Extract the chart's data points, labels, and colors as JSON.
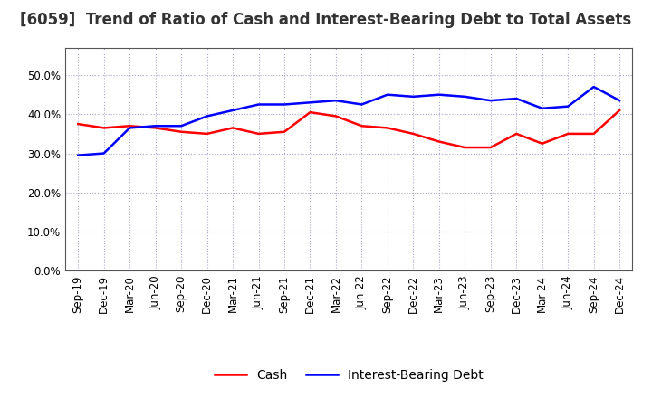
{
  "title": "[6059]  Trend of Ratio of Cash and Interest-Bearing Debt to Total Assets",
  "x_labels": [
    "Sep-19",
    "Dec-19",
    "Mar-20",
    "Jun-20",
    "Sep-20",
    "Dec-20",
    "Mar-21",
    "Jun-21",
    "Sep-21",
    "Dec-21",
    "Mar-22",
    "Jun-22",
    "Sep-22",
    "Dec-22",
    "Mar-23",
    "Jun-23",
    "Sep-23",
    "Dec-23",
    "Mar-24",
    "Jun-24",
    "Sep-24",
    "Dec-24"
  ],
  "cash": [
    37.5,
    36.5,
    37.0,
    36.5,
    35.5,
    35.0,
    36.5,
    35.0,
    35.5,
    40.5,
    39.5,
    37.0,
    36.5,
    35.0,
    33.0,
    31.5,
    31.5,
    35.0,
    32.5,
    35.0,
    35.0,
    41.0
  ],
  "interest_bearing_debt": [
    29.5,
    30.0,
    36.5,
    37.0,
    37.0,
    39.5,
    41.0,
    42.5,
    42.5,
    43.0,
    43.5,
    42.5,
    45.0,
    44.5,
    45.0,
    44.5,
    43.5,
    44.0,
    41.5,
    42.0,
    47.0,
    43.5
  ],
  "cash_color": "#ff0000",
  "debt_color": "#0000ff",
  "background_color": "#ffffff",
  "plot_bg_color": "#ffffff",
  "grid_color": "#aaaacc",
  "ylim": [
    0,
    57
  ],
  "yticks": [
    0.0,
    10.0,
    20.0,
    30.0,
    40.0,
    50.0
  ],
  "legend_cash": "Cash",
  "legend_debt": "Interest-Bearing Debt",
  "title_fontsize": 12,
  "tick_fontsize": 8.5,
  "legend_fontsize": 10
}
